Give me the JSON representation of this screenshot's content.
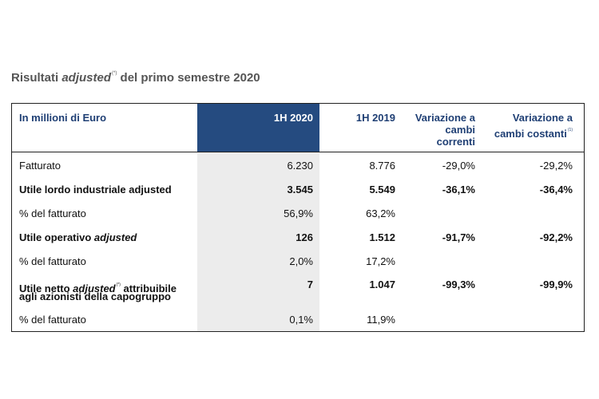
{
  "title": {
    "prefix": "Risultati ",
    "italic": "adjusted",
    "suffix": " del primo semestre 2020"
  },
  "table": {
    "headers": {
      "label": "In millioni di Euro",
      "h2020": "1H 2020",
      "h2019": "1H 2019",
      "var_correnti_line1": "Variazione a",
      "var_correnti_line2": "cambi",
      "var_correnti_line3": "correnti",
      "var_costanti_line1": "Variazione a",
      "var_costanti_line2": "cambi costanti"
    },
    "rows": [
      {
        "label": "Fatturato",
        "v2020": "6.230",
        "v2019": "8.776",
        "var_corr": "-29,0%",
        "var_cost": "-29,2%"
      },
      {
        "label": "Utile lordo industriale adjusted",
        "v2020": "3.545",
        "v2019": "5.549",
        "var_corr": "-36,1%",
        "var_cost": "-36,4%"
      },
      {
        "label": "% del fatturato",
        "v2020": "56,9%",
        "v2019": "63,2%",
        "var_corr": "",
        "var_cost": ""
      },
      {
        "label_prefix": "Utile operativo ",
        "label_italic": "adjusted",
        "v2020": "126",
        "v2019": "1.512",
        "var_corr": "-91,7%",
        "var_cost": "-92,2%"
      },
      {
        "label": "% del fatturato",
        "v2020": "2,0%",
        "v2019": "17,2%",
        "var_corr": "",
        "var_cost": ""
      },
      {
        "label_prefix": "Utile netto ",
        "label_italic": "adjusted",
        "label_suffix": " attribuibile",
        "label_line2": "agli azionisti della capogruppo",
        "v2020": "7",
        "v2019": "1.047",
        "var_corr": "-99,3%",
        "var_cost": "-99,9%"
      },
      {
        "label": "% del fatturato",
        "v2020": "0,1%",
        "v2019": "11,9%",
        "var_corr": "",
        "var_cost": ""
      }
    ]
  }
}
